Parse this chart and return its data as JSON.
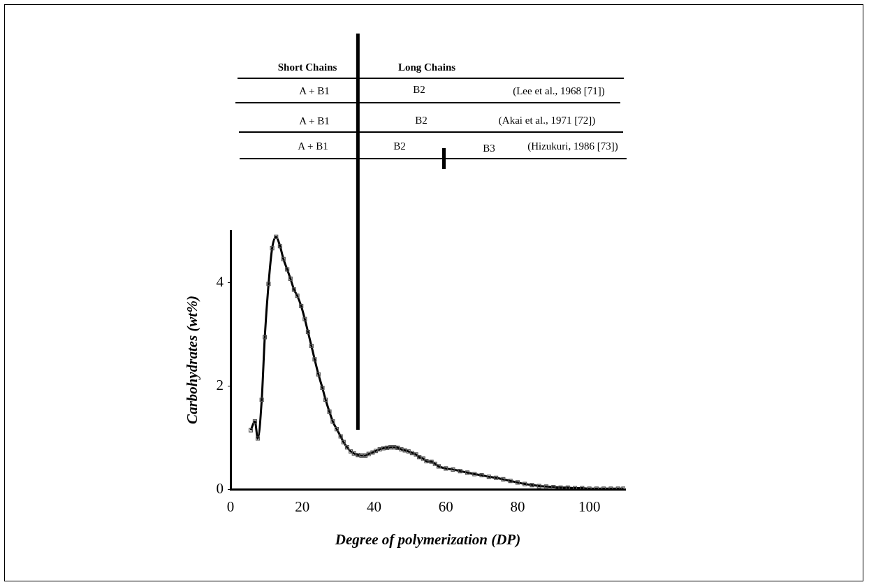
{
  "chart_data": {
    "type": "line",
    "xlabel": "Degree of polymerization (DP)",
    "ylabel": "Carbohydrates (wt%)",
    "xlim": [
      0,
      110
    ],
    "ylim": [
      0,
      5
    ],
    "xticks": [
      0,
      20,
      40,
      60,
      80,
      100
    ],
    "yticks": [
      0,
      2,
      4
    ],
    "grid": false,
    "legend": false,
    "marker": "square",
    "line_style": "solid",
    "series": [
      {
        "color": "#000000",
        "x": [
          5.65,
          6.8,
          7.6,
          8.7,
          9.55,
          10.6,
          11.6,
          12.7,
          13.8,
          14.75,
          15.8,
          16.7,
          17.7,
          18.6,
          19.7,
          20.7,
          21.6,
          22.55,
          23.45,
          24.5,
          25.6,
          26.5,
          27.55,
          28.5,
          29.6,
          30.7,
          31.5,
          32.5,
          33.5,
          34.4,
          35.5,
          36.5,
          37.6,
          38.5,
          39.6,
          40.5,
          41.6,
          42.6,
          43.6,
          44.6,
          45.6,
          46.6,
          47.6,
          48.6,
          49.6,
          50.6,
          51.7,
          52.6,
          53.7,
          54.6,
          56,
          57,
          58,
          60,
          62,
          64,
          66,
          68,
          70,
          72,
          74,
          76,
          78,
          80,
          82,
          84,
          86,
          88,
          90,
          92,
          94,
          96,
          98,
          100,
          102,
          104,
          106,
          108,
          109.5
        ],
        "values": [
          1.14,
          1.31,
          0.98,
          1.73,
          2.94,
          3.97,
          4.66,
          4.88,
          4.7,
          4.45,
          4.25,
          4.07,
          3.86,
          3.74,
          3.54,
          3.29,
          3.04,
          2.77,
          2.51,
          2.22,
          1.96,
          1.73,
          1.5,
          1.31,
          1.16,
          1.02,
          0.91,
          0.81,
          0.73,
          0.69,
          0.66,
          0.65,
          0.65,
          0.68,
          0.71,
          0.74,
          0.77,
          0.79,
          0.8,
          0.81,
          0.81,
          0.8,
          0.77,
          0.75,
          0.73,
          0.7,
          0.67,
          0.62,
          0.59,
          0.54,
          0.53,
          0.49,
          0.44,
          0.4,
          0.38,
          0.35,
          0.32,
          0.29,
          0.27,
          0.24,
          0.22,
          0.19,
          0.16,
          0.13,
          0.1,
          0.08,
          0.06,
          0.05,
          0.04,
          0.03,
          0.03,
          0.02,
          0.02,
          0.01,
          0.01,
          0.01,
          0.01,
          0.01,
          0.01
        ]
      }
    ],
    "ref_lines": [
      {
        "axis": "x",
        "value": 35.5,
        "color": "#000000"
      }
    ],
    "annotations": [
      "Short Chains",
      "Long Chains",
      "A + B1",
      "B2",
      "(Lee et al., 1968 [71])",
      "A + B1",
      "B2",
      "(Akai et al., 1971 [72])",
      "A + B1",
      "B2",
      "B3",
      "(Hizukuri, 1986 [73])"
    ]
  }
}
